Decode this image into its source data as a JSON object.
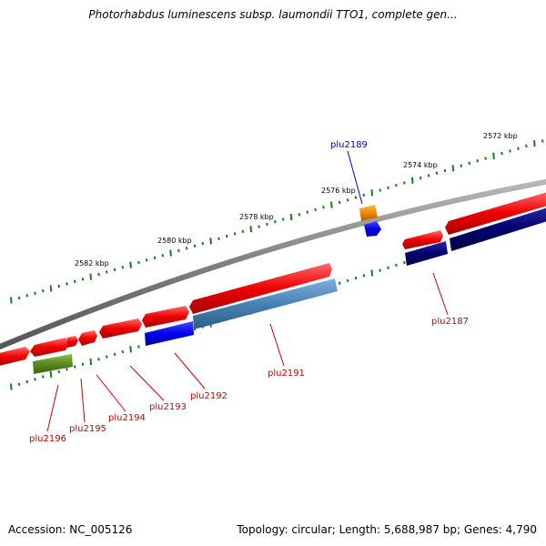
{
  "title": "Photorhabdus luminescens subsp. laumondii TTO1, complete gen...",
  "footer": {
    "accession": "Accession: NC_005126",
    "summary": "Topology: circular; Length: 5,688,987 bp; Genes: 4,790"
  },
  "colors": {
    "backbone": "#808080",
    "tick": "#1a7a1a",
    "gene_red": "#ee0000",
    "gene_blue": "#0000ee",
    "gene_navy": "#00006e",
    "gene_steel": "#4682b4",
    "gene_olive": "#5a8a1e",
    "gene_orange": "#ee8800",
    "label_red": "#cc0000",
    "label_blue": "#0000cc"
  },
  "scale_labels": [
    "2572 kbp",
    "2574 kbp",
    "2576 kbp",
    "2578 kbp",
    "2580 kbp",
    "2582 kbp"
  ],
  "gene_labels": [
    {
      "text": "plu2189",
      "color": "blue"
    },
    {
      "text": "plu2187",
      "color": "red"
    },
    {
      "text": "plu2191",
      "color": "red"
    },
    {
      "text": "plu2192",
      "color": "red"
    },
    {
      "text": "plu2193",
      "color": "red"
    },
    {
      "text": "plu2194",
      "color": "red"
    },
    {
      "text": "plu2195",
      "color": "red"
    },
    {
      "text": "plu2196",
      "color": "red"
    }
  ]
}
